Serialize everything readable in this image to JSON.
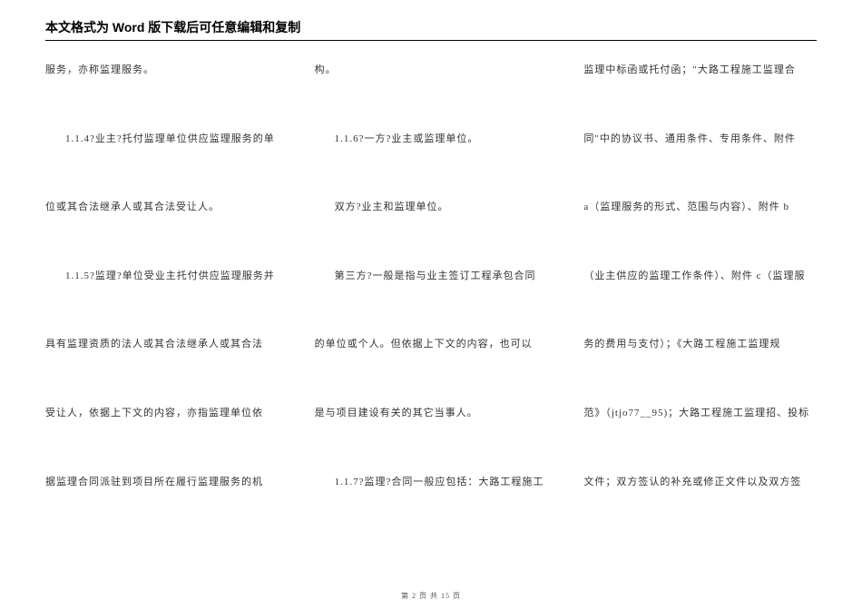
{
  "header": "本文格式为 Word 版下载后可任意编辑和复制",
  "col1": {
    "p1": "服务，亦称监理服务。",
    "p2": "1.1.4?业主?托付监理单位供应监理服务的单",
    "p3": "位或其合法继承人或其合法受让人。",
    "p4": "1.1.5?监理?单位受业主托付供应监理服务并",
    "p5": "具有监理资质的法人或其合法继承人或其合法",
    "p6": "受让人，依据上下文的内容，亦指监理单位依",
    "p7": "据监理合同派驻到项目所在履行监理服务的机"
  },
  "col2": {
    "p1": "构。",
    "p2": "1.1.6?一方?业主或监理单位。",
    "p3": "双方?业主和监理单位。",
    "p4": "第三方?一般是指与业主签订工程承包合同",
    "p5": "的单位或个人。但依据上下文的内容，也可以",
    "p6": "是与项目建设有关的其它当事人。",
    "p7": "1.1.7?监理?合同一般应包括：大路工程施工"
  },
  "col3": {
    "p1": "监理中标函或托付函；\"大路工程施工监理合",
    "p2": "同\"中的协议书、通用条件、专用条件、附件",
    "p3": "a（监理服务的形式、范围与内容）、附件 b",
    "p4": "（业主供应的监理工作条件）、附件 c（监理服",
    "p5": "务的费用与支付）；《大路工程施工监理规",
    "p6": "范》（jtjo77__95)；大路工程施工监理招、投标",
    "p7": "文件；双方签认的补充或修正文件以及双方签"
  },
  "footer": "第 2 页 共 15 页"
}
